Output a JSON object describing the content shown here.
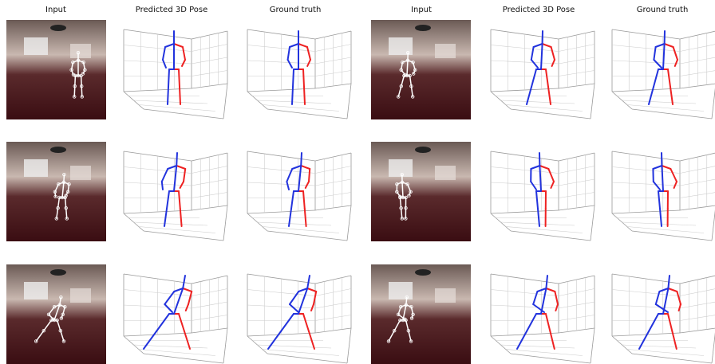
{
  "header": {
    "columns": [
      "Input",
      "Predicted 3D Pose",
      "Ground truth",
      "Input",
      "Predicted 3D Pose",
      "Ground truth"
    ]
  }
}
